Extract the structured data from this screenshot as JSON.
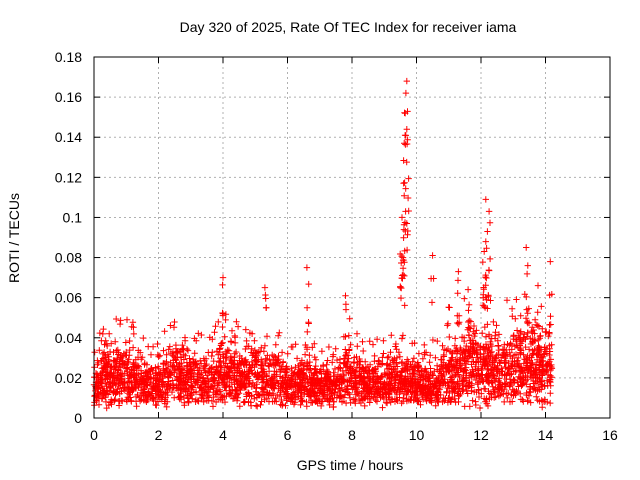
{
  "chart_data": {
    "type": "scatter",
    "title": "Day 320 of 2025, Rate Of TEC Index for receiver iama",
    "xlabel": "GPS time / hours",
    "ylabel": "ROTI / TECUs",
    "xlim": [
      0,
      16
    ],
    "ylim": [
      0,
      0.18
    ],
    "xticks": [
      0,
      2,
      4,
      6,
      8,
      10,
      12,
      14,
      16
    ],
    "xtick_labels": [
      "0",
      "2",
      "4",
      "6",
      "8",
      "10",
      "12",
      "14",
      "16"
    ],
    "yticks": [
      0,
      0.02,
      0.04,
      0.06,
      0.08,
      0.1,
      0.12,
      0.14,
      0.16,
      0.18
    ],
    "ytick_labels": [
      "0",
      "0.02",
      "0.04",
      "0.06",
      "0.08",
      "0.1",
      "0.12",
      "0.14",
      "0.16",
      "0.18"
    ],
    "grid": true,
    "marker": "+",
    "series": [
      {
        "name": "ROTI",
        "color": "#ff0000",
        "envelope": {
          "x": [
            0,
            0.5,
            1,
            1.5,
            2,
            2.5,
            3,
            3.5,
            4,
            4.5,
            5,
            5.5,
            6,
            6.5,
            7,
            7.5,
            8,
            8.5,
            9,
            9.5,
            10,
            10.5,
            11,
            11.5,
            12,
            12.5,
            13,
            13.5,
            14,
            14.2
          ],
          "typical_low": [
            0.008,
            0.008,
            0.008,
            0.008,
            0.008,
            0.008,
            0.008,
            0.008,
            0.008,
            0.008,
            0.008,
            0.008,
            0.008,
            0.008,
            0.008,
            0.008,
            0.008,
            0.008,
            0.008,
            0.008,
            0.008,
            0.008,
            0.008,
            0.008,
            0.008,
            0.008,
            0.008,
            0.008,
            0.008,
            0.008
          ],
          "typical_high": [
            0.03,
            0.035,
            0.04,
            0.03,
            0.028,
            0.04,
            0.035,
            0.03,
            0.04,
            0.035,
            0.04,
            0.035,
            0.028,
            0.03,
            0.028,
            0.03,
            0.04,
            0.03,
            0.03,
            0.035,
            0.03,
            0.025,
            0.045,
            0.045,
            0.05,
            0.045,
            0.045,
            0.05,
            0.05,
            0.035
          ]
        },
        "peaks": [
          {
            "x": 4.0,
            "y": 0.07
          },
          {
            "x": 5.3,
            "y": 0.065
          },
          {
            "x": 6.6,
            "y": 0.075
          },
          {
            "x": 7.8,
            "y": 0.061
          },
          {
            "x": 9.55,
            "y": 0.1
          },
          {
            "x": 9.6,
            "y": 0.117
          },
          {
            "x": 9.62,
            "y": 0.137
          },
          {
            "x": 9.65,
            "y": 0.152
          },
          {
            "x": 9.67,
            "y": 0.162
          },
          {
            "x": 9.7,
            "y": 0.168
          },
          {
            "x": 9.7,
            "y": 0.144
          },
          {
            "x": 9.58,
            "y": 0.08
          },
          {
            "x": 10.5,
            "y": 0.081
          },
          {
            "x": 11.3,
            "y": 0.073
          },
          {
            "x": 11.6,
            "y": 0.064
          },
          {
            "x": 12.15,
            "y": 0.109
          },
          {
            "x": 12.25,
            "y": 0.103
          },
          {
            "x": 12.2,
            "y": 0.093
          },
          {
            "x": 12.1,
            "y": 0.083
          },
          {
            "x": 13.4,
            "y": 0.085
          },
          {
            "x": 13.45,
            "y": 0.076
          },
          {
            "x": 14.15,
            "y": 0.078
          }
        ]
      }
    ]
  }
}
